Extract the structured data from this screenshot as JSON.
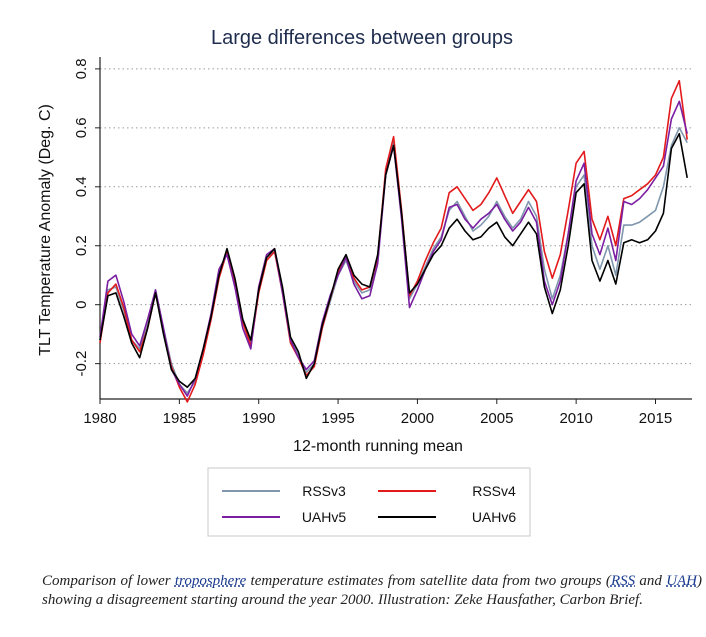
{
  "chart_data": {
    "type": "line",
    "title": "Large differences between groups",
    "xlabel": "12-month running mean",
    "ylabel": "TLT Temperature Anomaly (Deg. C)",
    "xlim": [
      1980,
      2017.3
    ],
    "ylim": [
      -0.32,
      0.82
    ],
    "x_ticks": [
      1980,
      1985,
      1990,
      1995,
      2000,
      2005,
      2010,
      2015
    ],
    "y_ticks": [
      -0.2,
      0,
      0.2,
      0.4,
      0.6,
      0.8
    ],
    "y_tick_labels": [
      "-0.2",
      "0",
      "0.2",
      "0.4",
      "0.6",
      "0.8"
    ],
    "x_tick_labels": [
      "1980",
      "1985",
      "1990",
      "1995",
      "2000",
      "2005",
      "2010",
      "2015"
    ],
    "grid": "horizontal dotted",
    "legend_position": "bottom",
    "x": [
      1980.0,
      1980.5,
      1981.0,
      1981.5,
      1982.0,
      1982.5,
      1983.0,
      1983.5,
      1984.0,
      1984.5,
      1985.0,
      1985.5,
      1986.0,
      1986.5,
      1987.0,
      1987.5,
      1988.0,
      1988.5,
      1989.0,
      1989.5,
      1990.0,
      1990.5,
      1991.0,
      1991.5,
      1992.0,
      1992.5,
      1993.0,
      1993.5,
      1994.0,
      1994.5,
      1995.0,
      1995.5,
      1996.0,
      1996.5,
      1997.0,
      1997.5,
      1998.0,
      1998.5,
      1999.0,
      1999.5,
      2000.0,
      2000.5,
      2001.0,
      2001.5,
      2002.0,
      2002.5,
      2003.0,
      2003.5,
      2004.0,
      2004.5,
      2005.0,
      2005.5,
      2006.0,
      2006.5,
      2007.0,
      2007.5,
      2008.0,
      2008.5,
      2009.0,
      2009.5,
      2010.0,
      2010.5,
      2011.0,
      2011.5,
      2012.0,
      2012.5,
      2013.0,
      2013.5,
      2014.0,
      2014.5,
      2015.0,
      2015.5,
      2016.0,
      2016.5,
      2017.0
    ],
    "series": [
      {
        "name": "RSSv3",
        "color": "#7f96ad",
        "values": [
          -0.12,
          0.05,
          0.06,
          -0.02,
          -0.12,
          -0.15,
          -0.07,
          0.05,
          -0.08,
          -0.2,
          -0.27,
          -0.3,
          -0.26,
          -0.16,
          -0.04,
          0.1,
          0.18,
          0.08,
          -0.06,
          -0.13,
          0.05,
          0.16,
          0.18,
          0.05,
          -0.12,
          -0.17,
          -0.23,
          -0.2,
          -0.08,
          0.01,
          0.1,
          0.15,
          0.08,
          0.04,
          0.05,
          0.15,
          0.45,
          0.55,
          0.3,
          0.02,
          0.07,
          0.13,
          0.19,
          0.23,
          0.32,
          0.35,
          0.3,
          0.25,
          0.27,
          0.3,
          0.35,
          0.3,
          0.26,
          0.29,
          0.35,
          0.3,
          0.12,
          0.02,
          0.1,
          0.24,
          0.4,
          0.44,
          0.2,
          0.12,
          0.2,
          0.1,
          0.27,
          0.27,
          0.28,
          0.3,
          0.32,
          0.4,
          0.54,
          0.6,
          0.55
        ]
      },
      {
        "name": "RSSv4",
        "color": "#e31a1c",
        "values": [
          -0.13,
          0.04,
          0.07,
          -0.01,
          -0.12,
          -0.16,
          -0.08,
          0.04,
          -0.09,
          -0.21,
          -0.28,
          -0.33,
          -0.27,
          -0.17,
          -0.05,
          0.09,
          0.18,
          0.08,
          -0.06,
          -0.14,
          0.04,
          0.15,
          0.18,
          0.04,
          -0.13,
          -0.18,
          -0.24,
          -0.21,
          -0.08,
          0.02,
          0.11,
          0.16,
          0.09,
          0.05,
          0.06,
          0.16,
          0.46,
          0.57,
          0.32,
          0.03,
          0.08,
          0.15,
          0.21,
          0.26,
          0.38,
          0.4,
          0.36,
          0.32,
          0.34,
          0.38,
          0.43,
          0.37,
          0.31,
          0.35,
          0.39,
          0.35,
          0.18,
          0.09,
          0.17,
          0.32,
          0.48,
          0.52,
          0.29,
          0.22,
          0.3,
          0.2,
          0.36,
          0.37,
          0.39,
          0.41,
          0.44,
          0.5,
          0.7,
          0.76,
          0.56
        ]
      },
      {
        "name": "UAHv5",
        "color": "#7b1fa2",
        "values": [
          -0.11,
          0.08,
          0.1,
          0.01,
          -0.1,
          -0.14,
          -0.05,
          0.05,
          -0.08,
          -0.22,
          -0.27,
          -0.31,
          -0.25,
          -0.15,
          -0.03,
          0.12,
          0.17,
          0.06,
          -0.08,
          -0.15,
          0.06,
          0.17,
          0.19,
          0.04,
          -0.12,
          -0.18,
          -0.22,
          -0.19,
          -0.06,
          0.03,
          0.1,
          0.16,
          0.07,
          0.02,
          0.03,
          0.14,
          0.44,
          0.54,
          0.29,
          -0.01,
          0.05,
          0.12,
          0.18,
          0.22,
          0.33,
          0.34,
          0.29,
          0.26,
          0.29,
          0.31,
          0.34,
          0.29,
          0.25,
          0.28,
          0.33,
          0.28,
          0.08,
          0.0,
          0.08,
          0.24,
          0.42,
          0.48,
          0.24,
          0.17,
          0.26,
          0.15,
          0.35,
          0.34,
          0.36,
          0.39,
          0.43,
          0.47,
          0.63,
          0.69,
          0.58
        ]
      },
      {
        "name": "UAHv6",
        "color": "#000000",
        "values": [
          -0.12,
          0.03,
          0.04,
          -0.04,
          -0.13,
          -0.18,
          -0.08,
          0.04,
          -0.1,
          -0.22,
          -0.26,
          -0.28,
          -0.25,
          -0.15,
          -0.04,
          0.1,
          0.19,
          0.09,
          -0.05,
          -0.12,
          0.05,
          0.16,
          0.19,
          0.06,
          -0.11,
          -0.16,
          -0.25,
          -0.2,
          -0.07,
          0.02,
          0.12,
          0.17,
          0.1,
          0.07,
          0.06,
          0.17,
          0.44,
          0.54,
          0.31,
          0.04,
          0.07,
          0.12,
          0.17,
          0.2,
          0.26,
          0.29,
          0.25,
          0.22,
          0.23,
          0.26,
          0.28,
          0.23,
          0.2,
          0.24,
          0.28,
          0.24,
          0.06,
          -0.03,
          0.05,
          0.2,
          0.38,
          0.41,
          0.15,
          0.08,
          0.15,
          0.07,
          0.21,
          0.22,
          0.21,
          0.22,
          0.25,
          0.31,
          0.53,
          0.58,
          0.43
        ]
      }
    ]
  },
  "caption": {
    "part1": "Comparison of lower ",
    "link1": "troposphere",
    "part2": " temperature estimates from satellite data from two groups (",
    "link2": "RSS",
    "part3": " and ",
    "link3": "UAH",
    "part4": ") showing a disagreement starting around the year 2000. Illustration: Zeke Hausfather, Carbon Brief."
  }
}
